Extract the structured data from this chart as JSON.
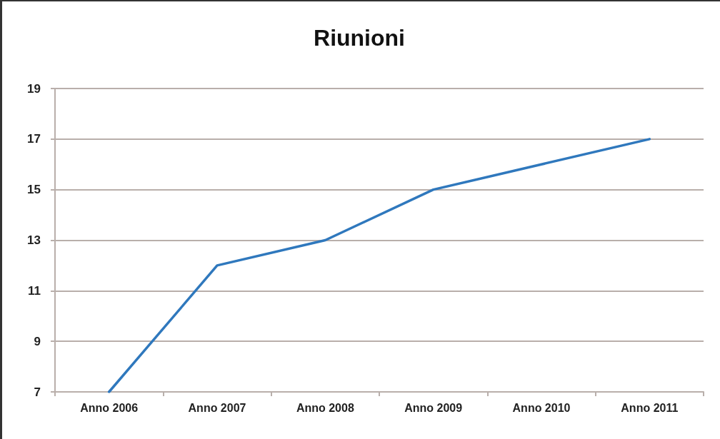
{
  "chart_data": {
    "type": "line",
    "title": "Riunioni",
    "categories": [
      "Anno 2006",
      "Anno 2007",
      "Anno 2008",
      "Anno 2009",
      "Anno 2010",
      "Anno 2011"
    ],
    "series": [
      {
        "color": "#2f78bd",
        "values": [
          7,
          12,
          13,
          15,
          16,
          17
        ]
      }
    ],
    "ylim": [
      7,
      19
    ],
    "yticks": [
      7,
      9,
      11,
      13,
      15,
      17,
      19
    ],
    "grid": "y"
  }
}
